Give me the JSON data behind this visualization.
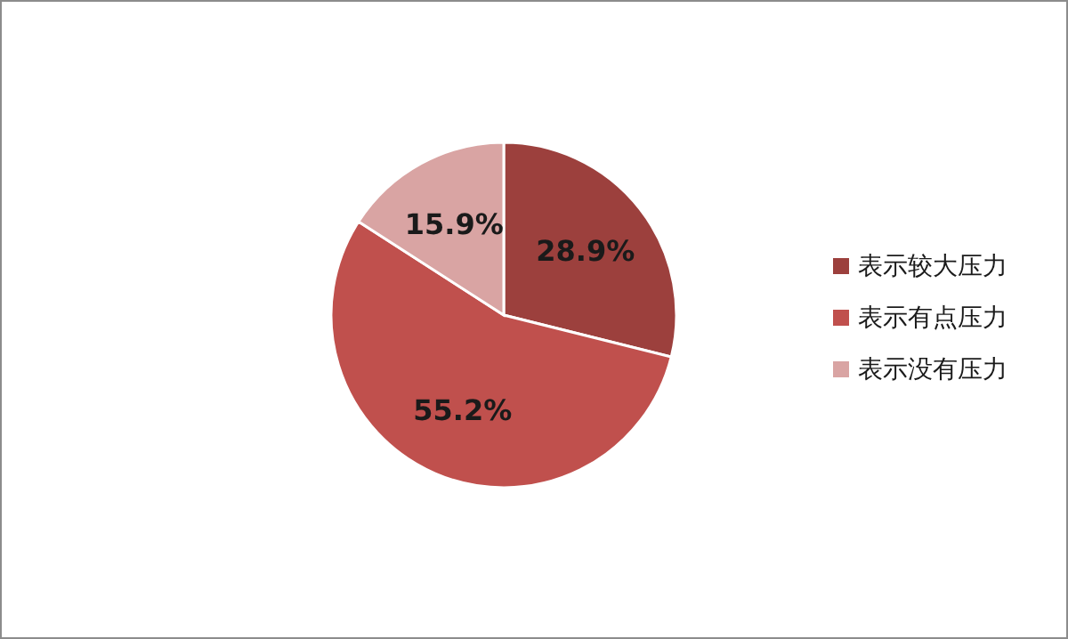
{
  "chart_data": {
    "type": "pie",
    "categories": [
      "表示较大压力",
      "表示有点压力",
      "表示没有压力"
    ],
    "values": [
      28.9,
      55.2,
      15.9
    ],
    "colors": [
      "#9c403d",
      "#c0504d",
      "#d9a4a3"
    ],
    "value_labels": [
      "28.9%",
      "55.2%",
      "15.9%"
    ],
    "legend": "right"
  }
}
